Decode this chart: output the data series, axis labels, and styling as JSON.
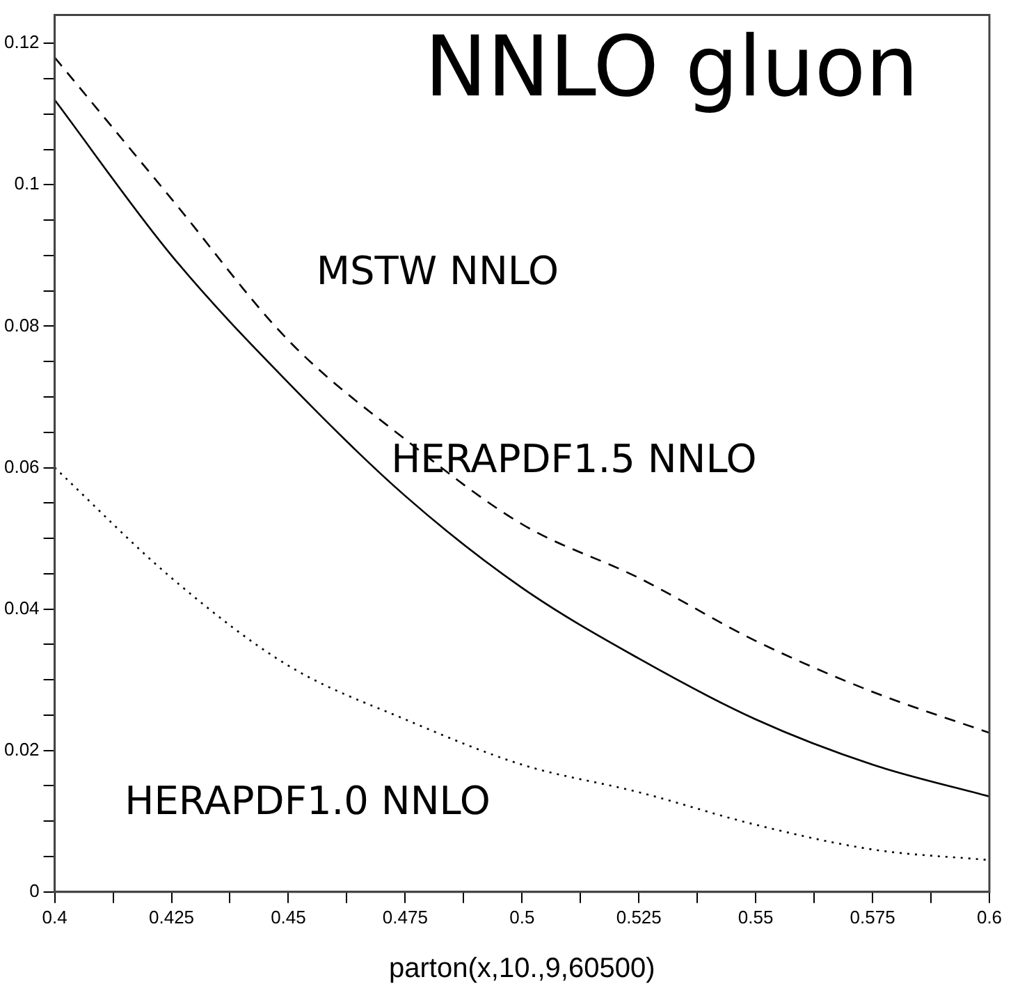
{
  "chart_data": {
    "type": "line",
    "title": "NNLO gluon",
    "xlabel": "parton(x,10.,9,60500)",
    "x": [
      0.4,
      0.425,
      0.45,
      0.475,
      0.5,
      0.525,
      0.55,
      0.575,
      0.6
    ],
    "series": [
      {
        "color": "#000000",
        "line_style": "dashed",
        "values": [
          0.118,
          0.098,
          0.078,
          0.064,
          0.052,
          0.0444,
          0.0355,
          0.0283,
          0.0225
        ]
      },
      {
        "color": "#000000",
        "line_style": "solid",
        "values": [
          0.112,
          0.09,
          0.072,
          0.056,
          0.043,
          0.033,
          0.0244,
          0.018,
          0.0135
        ]
      },
      {
        "color": "#000000",
        "line_style": "dotted",
        "values": [
          0.06,
          0.0444,
          0.032,
          0.0244,
          0.018,
          0.0141,
          0.0095,
          0.006,
          0.0045
        ]
      }
    ],
    "annotations": [
      "MSTW NNLO",
      "HERAPDF1.5 NNLO",
      "HERAPDF1.0 NNLO"
    ],
    "xlim": [
      0.4,
      0.6
    ],
    "xticks": [
      0.4,
      {
        "value": 0.4125,
        "label": null
      },
      0.425,
      {
        "value": 0.4375,
        "label": null
      },
      0.45,
      {
        "value": 0.4625,
        "label": null
      },
      0.475,
      {
        "value": 0.4875,
        "label": null
      },
      0.5,
      {
        "value": 0.5125,
        "label": null
      },
      0.525,
      {
        "value": 0.5375,
        "label": null
      },
      0.55,
      {
        "value": 0.5625,
        "label": null
      },
      0.575,
      {
        "value": 0.5875,
        "label": null
      },
      0.6
    ],
    "ylim": [
      0,
      0.124
    ],
    "yticks": [
      0,
      {
        "value": 0.005,
        "label": null
      },
      {
        "value": 0.01,
        "label": null
      },
      {
        "value": 0.015,
        "label": null
      },
      0.02,
      {
        "value": 0.025,
        "label": null
      },
      {
        "value": 0.03,
        "label": null
      },
      {
        "value": 0.035,
        "label": null
      },
      0.04,
      {
        "value": 0.045,
        "label": null
      },
      {
        "value": 0.05,
        "label": null
      },
      {
        "value": 0.055,
        "label": null
      },
      0.06,
      {
        "value": 0.065,
        "label": null
      },
      {
        "value": 0.07,
        "label": null
      },
      {
        "value": 0.075,
        "label": null
      },
      0.08,
      {
        "value": 0.085,
        "label": null
      },
      {
        "value": 0.09,
        "label": null
      },
      {
        "value": 0.095,
        "label": null
      },
      0.1,
      {
        "value": 0.105,
        "label": null
      },
      {
        "value": 0.11,
        "label": null
      },
      {
        "value": 0.115,
        "label": null
      },
      0.12
    ],
    "grid": false,
    "legend": false,
    "marker": "none"
  }
}
